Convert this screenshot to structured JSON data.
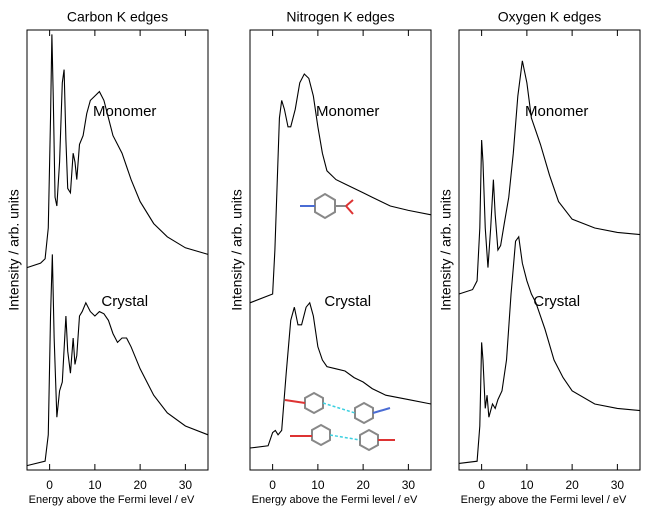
{
  "chart_data": [
    {
      "type": "line",
      "title": "Carbon K edges",
      "xlabel": "Energy above the Fermi level / eV",
      "ylabel": "Intensity / arb. units",
      "xlim": [
        -5,
        35
      ],
      "xticks": [
        0,
        10,
        20,
        30
      ],
      "ylim": [
        0,
        100
      ],
      "series": [
        {
          "name": "Monomer",
          "color": "#000000",
          "x": [
            -5,
            -2,
            -1,
            -0.3,
            0.2,
            0.5,
            0.8,
            1.2,
            1.6,
            2.2,
            2.8,
            3.2,
            3.6,
            4,
            4.6,
            5.2,
            5.6,
            6,
            6.6,
            7.4,
            8.2,
            9,
            10,
            11,
            12,
            13,
            14,
            15,
            16,
            18,
            20,
            23,
            26,
            30,
            35
          ],
          "values": [
            46,
            47,
            48,
            55,
            80,
            99,
            85,
            62,
            60,
            70,
            88,
            91,
            75,
            64,
            63,
            72,
            70,
            66,
            74,
            76,
            81,
            84,
            85,
            86,
            84,
            80,
            76,
            74,
            72,
            66,
            61,
            56,
            53,
            50.5,
            49
          ]
        },
        {
          "name": "Crystal",
          "color": "#000000",
          "x": [
            -5,
            -1,
            -0.3,
            0.2,
            0.6,
            1,
            1.6,
            2.2,
            2.8,
            3.6,
            4,
            4.6,
            5.2,
            5.6,
            6,
            6.6,
            7.2,
            8,
            9,
            10,
            11,
            12,
            13,
            14,
            15,
            16,
            17,
            18,
            20,
            23,
            26,
            30,
            35
          ],
          "values": [
            1,
            2,
            8,
            35,
            49,
            30,
            12,
            18,
            20,
            35,
            27,
            22,
            30,
            24,
            26,
            35,
            36,
            38,
            36,
            35,
            36,
            35.5,
            34,
            31,
            29,
            30,
            30,
            28,
            23,
            17,
            13,
            10,
            8
          ]
        }
      ]
    },
    {
      "type": "line",
      "title": "Nitrogen K edges",
      "xlabel": "Energy above the Fermi level / eV",
      "ylabel": "Intensity / arb. units",
      "xlim": [
        -5,
        35
      ],
      "xticks": [
        0,
        10,
        20,
        30
      ],
      "ylim": [
        0,
        100
      ],
      "series": [
        {
          "name": "Monomer",
          "color": "#000000",
          "x": [
            -5,
            0,
            0.5,
            1,
            1.5,
            2,
            2.6,
            3.4,
            4,
            5,
            6,
            7,
            8,
            9,
            10,
            11,
            12,
            14,
            16,
            18,
            20,
            22,
            24,
            26,
            30,
            35
          ],
          "values": [
            38,
            40,
            50,
            65,
            80,
            84,
            82,
            78,
            78,
            82,
            88,
            90,
            89,
            85,
            78,
            72,
            68,
            66,
            65,
            64,
            63,
            62,
            61,
            60,
            59,
            58
          ]
        },
        {
          "name": "Crystal",
          "color": "#000000",
          "x": [
            -5,
            -1,
            0,
            0.6,
            1.2,
            2,
            3,
            4,
            4.8,
            5.6,
            6.4,
            7.4,
            8.2,
            9,
            10,
            11,
            12,
            14,
            16,
            18,
            20,
            22,
            25,
            30,
            35
          ],
          "values": [
            5,
            5.5,
            8.5,
            9,
            8,
            9,
            22,
            34,
            37,
            33,
            33,
            37,
            38,
            35,
            28,
            25,
            23.5,
            23,
            22.5,
            21,
            20,
            18.5,
            17,
            16,
            15
          ]
        }
      ]
    },
    {
      "type": "line",
      "title": "Oxygen K edges",
      "xlabel": "Energy above the Fermi level / eV",
      "ylabel": "Intensity / arb. units",
      "xlim": [
        -5,
        35
      ],
      "xticks": [
        0,
        10,
        20,
        30
      ],
      "ylim": [
        0,
        100
      ],
      "series": [
        {
          "name": "Monomer",
          "color": "#000000",
          "x": [
            -5,
            -2,
            -1,
            -0.4,
            0,
            0.3,
            0.8,
            1.4,
            2,
            2.6,
            3,
            3.6,
            4.2,
            5,
            6,
            7,
            8,
            9,
            10,
            11,
            12,
            13,
            15,
            17,
            20,
            25,
            30,
            35
          ],
          "values": [
            40,
            41,
            43,
            55,
            75,
            70,
            55,
            46,
            55,
            66,
            58,
            50,
            51,
            56,
            62,
            72,
            85,
            93,
            88,
            80,
            77,
            74,
            67,
            61,
            57,
            55,
            54,
            53.5
          ]
        },
        {
          "name": "Crystal",
          "color": "#000000",
          "x": [
            -5,
            -1,
            -0.4,
            0,
            0.3,
            0.8,
            1.2,
            1.6,
            2.4,
            3,
            3.6,
            4.5,
            5.5,
            6.5,
            7.5,
            8.2,
            9,
            10,
            11,
            12,
            14,
            16,
            18,
            20,
            25,
            30,
            35
          ],
          "values": [
            1.5,
            2,
            10,
            29,
            25,
            14,
            17,
            12,
            15,
            14,
            16,
            18,
            25,
            40,
            52,
            53,
            47,
            43,
            40,
            38,
            32,
            25,
            21,
            18,
            15,
            14,
            13.5
          ]
        }
      ]
    }
  ]
}
